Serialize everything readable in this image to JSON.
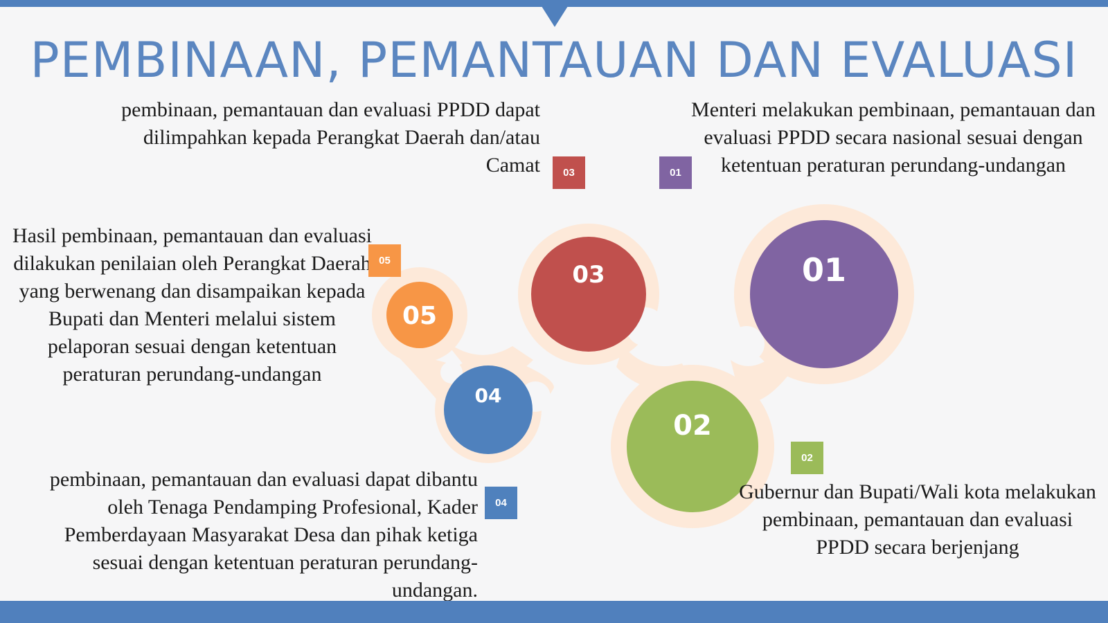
{
  "title": "PEMBINAAN, PEMANTAUAN DAN EVALUASI",
  "steps": [
    {
      "number": "01",
      "color": "#8064a2",
      "text": "Menteri melakukan pembinaan, pemantauan dan evaluasi PPDD secara nasional sesuai dengan ketentuan peraturan perundang-undangan"
    },
    {
      "number": "02",
      "color": "#9bbb59",
      "text": "Gubernur dan Bupati/Wali kota melakukan pembinaan, pemantauan dan evaluasi PPDD secara berjenjang"
    },
    {
      "number": "03",
      "color": "#c0504d",
      "text": "pembinaan, pemantauan dan evaluasi PPDD dapat dilimpahkan kepada Perangkat Daerah dan/atau Camat"
    },
    {
      "number": "04",
      "color": "#4f81bd",
      "text": "pembinaan, pemantauan dan evaluasi dapat dibantu oleh Tenaga Pendamping Profesional, Kader Pemberdayaan Masyarakat Desa dan pihak ketiga sesuai dengan ketentuan peraturan perundang-undangan."
    },
    {
      "number": "05",
      "color": "#f79646",
      "text": "Hasil pembinaan, pemantauan dan evaluasi dilakukan penilaian oleh Perangkat Daerah yang berwenang dan disampaikan kepada Bupati dan Menteri melalui sistem pelaporan sesuai dengan ketentuan peraturan perundang-undangan"
    }
  ],
  "colors": {
    "accent_bar": "#5080bd",
    "title": "#5b86c0",
    "halo": "#fde9d9"
  }
}
